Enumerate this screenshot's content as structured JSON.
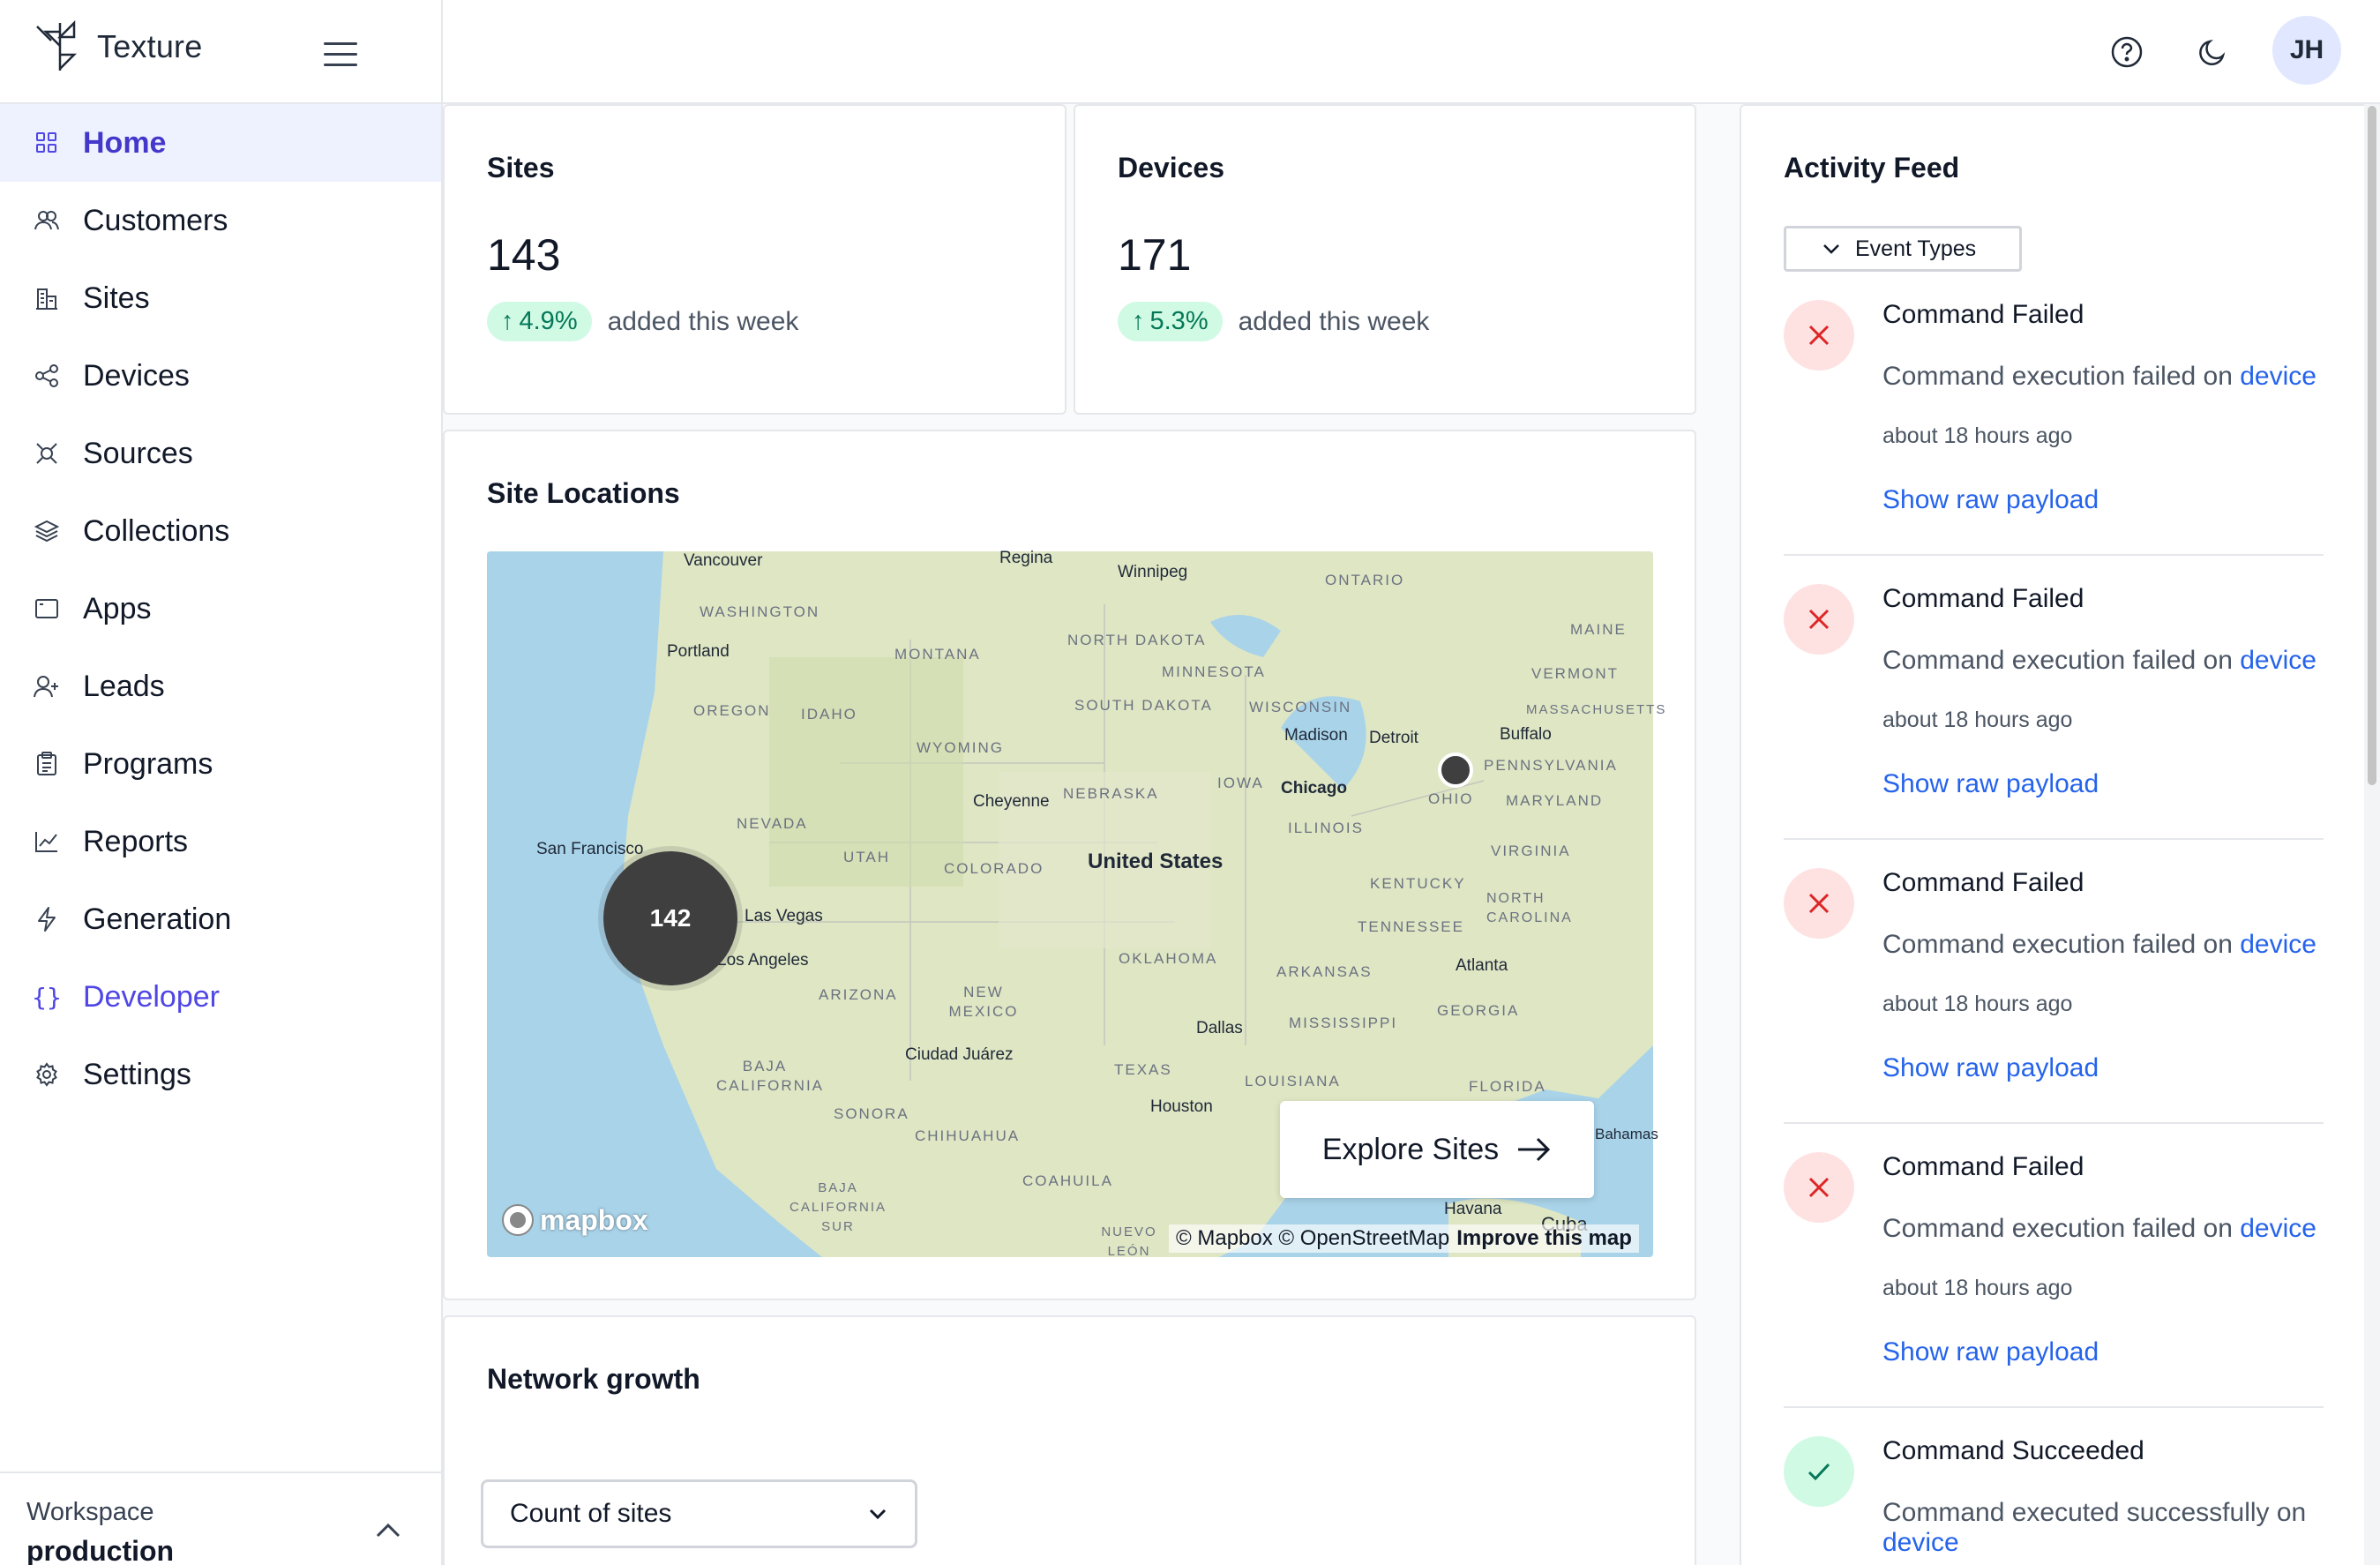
{
  "app": {
    "name": "Texture"
  },
  "sidebar": {
    "items": [
      {
        "label": "Home",
        "icon": "grid-icon"
      },
      {
        "label": "Customers",
        "icon": "users-icon"
      },
      {
        "label": "Sites",
        "icon": "building-icon"
      },
      {
        "label": "Devices",
        "icon": "share-nodes-icon"
      },
      {
        "label": "Sources",
        "icon": "plug-icon"
      },
      {
        "label": "Collections",
        "icon": "layers-icon"
      },
      {
        "label": "Apps",
        "icon": "window-icon"
      },
      {
        "label": "Leads",
        "icon": "user-plus-icon"
      },
      {
        "label": "Programs",
        "icon": "clipboard-icon"
      },
      {
        "label": "Reports",
        "icon": "line-chart-icon"
      },
      {
        "label": "Generation",
        "icon": "bolt-icon"
      },
      {
        "label": "Developer",
        "icon": "braces-icon"
      },
      {
        "label": "Settings",
        "icon": "gear-icon"
      }
    ],
    "active": "Home",
    "workspace": {
      "label": "Workspace",
      "value": "production"
    }
  },
  "header": {
    "avatar_initials": "JH"
  },
  "stats": {
    "sites": {
      "title": "Sites",
      "value": "143",
      "change": "4.9%",
      "subtitle": "added this week"
    },
    "devices": {
      "title": "Devices",
      "value": "171",
      "change": "5.3%",
      "subtitle": "added this week"
    }
  },
  "map": {
    "title": "Site Locations",
    "cluster_count": "142",
    "explore_label": "Explore Sites",
    "brand": "mapbox",
    "attribution": "© Mapbox © OpenStreetMap",
    "improve": "Improve this map",
    "country": "United States",
    "cities": [
      "Vancouver",
      "Regina",
      "Winnipeg",
      "Portland",
      "San Francisco",
      "Las Vegas",
      "Los Angeles",
      "Cheyenne",
      "Madison",
      "Detroit",
      "Chicago",
      "Buffalo",
      "Atlanta",
      "Dallas",
      "Houston",
      "Ciudad Juárez",
      "Havana",
      "Cuba",
      "Bahamas"
    ],
    "regions": [
      "ONTARIO",
      "WASHINGTON",
      "MONTANA",
      "NORTH DAKOTA",
      "MINNESOTA",
      "MAINE",
      "VERMONT",
      "MASSACHUSETTS",
      "OREGON",
      "IDAHO",
      "SOUTH DAKOTA",
      "WISCONSIN",
      "WYOMING",
      "PENNSYLVANIA",
      "NEBRASKA",
      "IOWA",
      "OHIO",
      "MARYLAND",
      "NEVADA",
      "UTAH",
      "COLORADO",
      "ILLINOIS",
      "VIRGINIA",
      "KENTUCKY",
      "NORTH CAROLINA",
      "TENNESSEE",
      "OKLAHOMA",
      "ARKANSAS",
      "ARIZONA",
      "NEW MEXICO",
      "GEORGIA",
      "MISSISSIPPI",
      "TEXAS",
      "LOUISIANA",
      "FLORIDA",
      "BAJA CALIFORNIA",
      "SONORA",
      "CHIHUAHUA",
      "COAHUILA",
      "BAJA CALIFORNIA SUR",
      "NUEVO LEÓN"
    ]
  },
  "network": {
    "title": "Network growth",
    "select_value": "Count of sites"
  },
  "activity": {
    "title": "Activity Feed",
    "filter_label": "Event Types",
    "items": [
      {
        "status": "fail",
        "title": "Command Failed",
        "desc": "Command execution failed on",
        "link": "device",
        "time": "about 18 hours ago",
        "payload": "Show raw payload"
      },
      {
        "status": "fail",
        "title": "Command Failed",
        "desc": "Command execution failed on",
        "link": "device",
        "time": "about 18 hours ago",
        "payload": "Show raw payload"
      },
      {
        "status": "fail",
        "title": "Command Failed",
        "desc": "Command execution failed on",
        "link": "device",
        "time": "about 18 hours ago",
        "payload": "Show raw payload"
      },
      {
        "status": "fail",
        "title": "Command Failed",
        "desc": "Command execution failed on",
        "link": "device",
        "time": "about 18 hours ago",
        "payload": "Show raw payload"
      },
      {
        "status": "ok",
        "title": "Command Succeeded",
        "desc": "Command executed successfully on",
        "link": "device"
      }
    ]
  },
  "colors": {
    "accent": "#4f46e5",
    "link": "#2563eb",
    "success": "#047857",
    "danger": "#dc2626"
  }
}
